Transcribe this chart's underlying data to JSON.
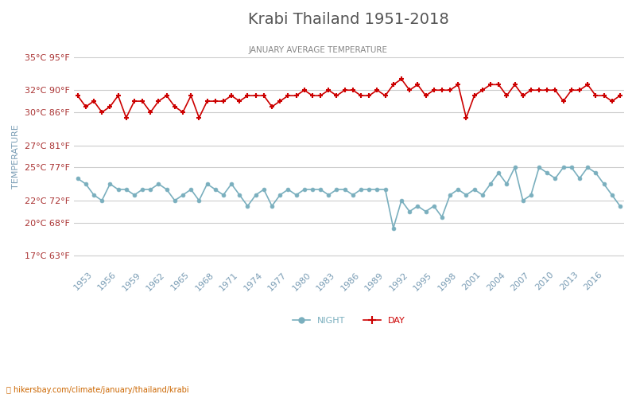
{
  "title": "Krabi Thailand 1951-2018",
  "subtitle": "JANUARY AVERAGE TEMPERATURE",
  "ylabel": "TEMPERATURE",
  "yticks_c": [
    17,
    20,
    22,
    25,
    27,
    30,
    32,
    35
  ],
  "yticks_f": [
    63,
    68,
    72,
    77,
    81,
    86,
    90,
    95
  ],
  "years": [
    1951,
    1952,
    1953,
    1954,
    1955,
    1956,
    1957,
    1958,
    1959,
    1960,
    1961,
    1962,
    1963,
    1964,
    1965,
    1966,
    1967,
    1968,
    1969,
    1970,
    1971,
    1972,
    1973,
    1974,
    1975,
    1976,
    1977,
    1978,
    1979,
    1980,
    1981,
    1982,
    1983,
    1984,
    1985,
    1986,
    1987,
    1988,
    1989,
    1990,
    1991,
    1992,
    1993,
    1994,
    1995,
    1996,
    1997,
    1998,
    1999,
    2000,
    2001,
    2002,
    2003,
    2004,
    2005,
    2006,
    2007,
    2008,
    2009,
    2010,
    2011,
    2012,
    2013,
    2014,
    2015,
    2016,
    2017,
    2018
  ],
  "day_temps": [
    31.5,
    30.5,
    31.0,
    30.0,
    30.5,
    31.5,
    29.5,
    31.0,
    31.0,
    30.0,
    31.0,
    31.5,
    30.5,
    30.0,
    31.5,
    29.5,
    31.0,
    31.0,
    31.0,
    31.5,
    31.0,
    31.5,
    31.5,
    31.5,
    30.5,
    31.0,
    31.5,
    31.5,
    32.0,
    31.5,
    31.5,
    32.0,
    31.5,
    32.0,
    32.0,
    31.5,
    31.5,
    32.0,
    31.5,
    32.5,
    33.0,
    32.0,
    32.5,
    31.5,
    32.0,
    32.0,
    32.0,
    32.5,
    29.5,
    31.5,
    32.0,
    32.5,
    32.5,
    31.5,
    32.5,
    31.5,
    32.0,
    32.0,
    32.0,
    32.0,
    31.0,
    32.0,
    32.0,
    32.5,
    31.5,
    31.5,
    31.0,
    31.5
  ],
  "night_temps": [
    24.0,
    23.5,
    22.5,
    22.0,
    23.5,
    23.0,
    23.0,
    22.5,
    23.0,
    23.0,
    23.5,
    23.0,
    22.0,
    22.5,
    23.0,
    22.0,
    23.5,
    23.0,
    22.5,
    23.5,
    22.5,
    21.5,
    22.5,
    23.0,
    21.5,
    22.5,
    23.0,
    22.5,
    23.0,
    23.0,
    23.0,
    22.5,
    23.0,
    23.0,
    22.5,
    23.0,
    23.0,
    23.0,
    23.0,
    19.5,
    22.0,
    21.0,
    21.5,
    21.0,
    21.5,
    20.5,
    22.5,
    23.0,
    22.5,
    23.0,
    22.5,
    23.5,
    24.5,
    23.5,
    25.0,
    22.0,
    22.5,
    25.0,
    24.5,
    24.0,
    25.0,
    25.0,
    24.0,
    25.0,
    24.5,
    23.5,
    22.5,
    21.5
  ],
  "day_color": "#cc0000",
  "night_color": "#7aafbe",
  "background_color": "#ffffff",
  "grid_color": "#cccccc",
  "title_color": "#555555",
  "subtitle_color": "#888888",
  "ylabel_color": "#7a9db5",
  "ytick_color": "#aa3333",
  "xtick_color": "#7a9db5",
  "watermark": "hikersbay.com/climate/january/thailand/krabi",
  "legend_night": "NIGHT",
  "legend_day": "DAY",
  "ylim": [
    16,
    36
  ]
}
